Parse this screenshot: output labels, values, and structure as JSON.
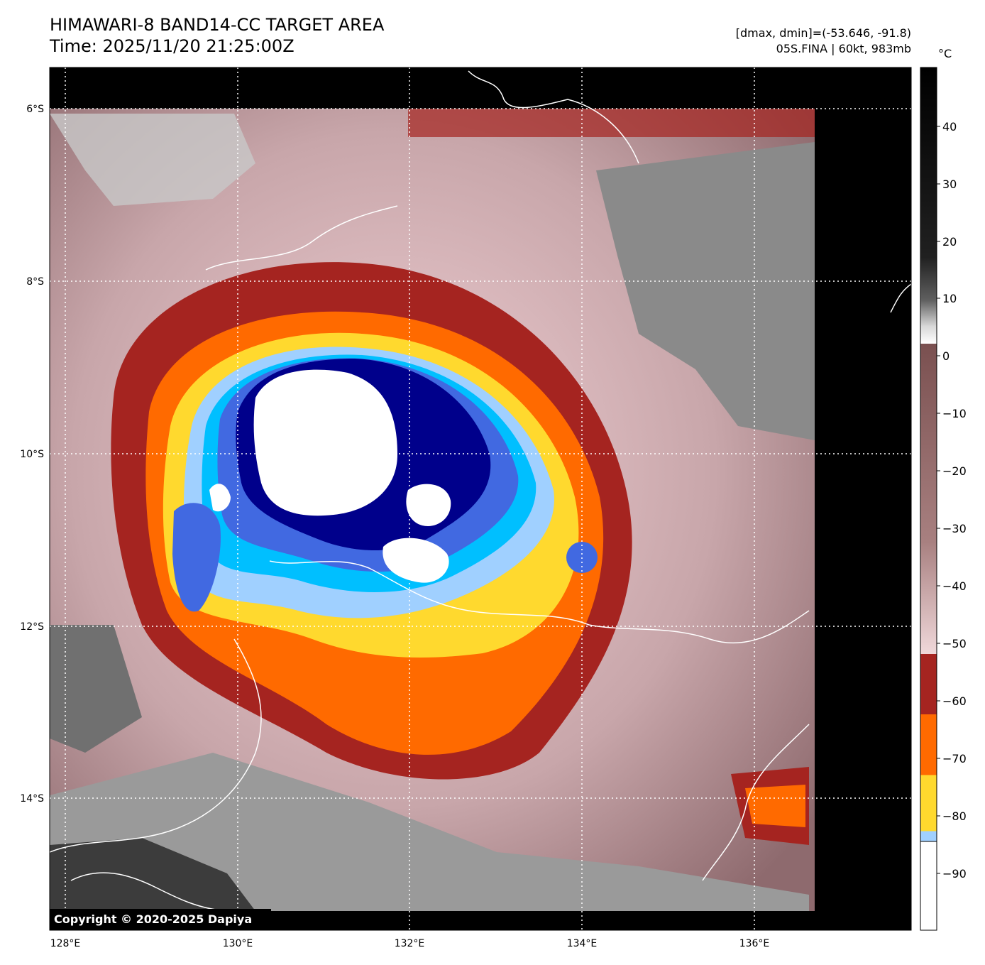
{
  "header": {
    "title_line1": "HIMAWARI-8 BAND14-CC TARGET AREA",
    "title_line2": "Time: 2025/11/20 21:25:00Z",
    "info_line1": "[dmax, dmin]=(-53.646, -91.8)",
    "info_line2": "05S.FINA | 60kt, 983mb"
  },
  "map": {
    "copyright": "Copyright © 2020-2025 Dapiya",
    "lat_labels": [
      "6°S",
      "8°S",
      "10°S",
      "12°S",
      "14°S"
    ],
    "lon_labels": [
      "128°E",
      "130°E",
      "132°E",
      "134°E",
      "136°E"
    ]
  },
  "colorbar": {
    "unit": "°C",
    "ticks": [
      "40",
      "30",
      "20",
      "10",
      "0",
      "−10",
      "−20",
      "−30",
      "−40",
      "−50",
      "−60",
      "−70",
      "−80",
      "−90"
    ],
    "colors": {
      "white": "#ffffff",
      "navy": "#00008b",
      "royal_blue": "#4169e1",
      "deep_sky": "#00bfff",
      "light_sky": "#a0d0ff",
      "yellow": "#ffd92e",
      "orange": "#ff6a00",
      "dark_red": "#a52420",
      "pink": "#f2d0d4",
      "mauve": "#7a5050"
    }
  }
}
